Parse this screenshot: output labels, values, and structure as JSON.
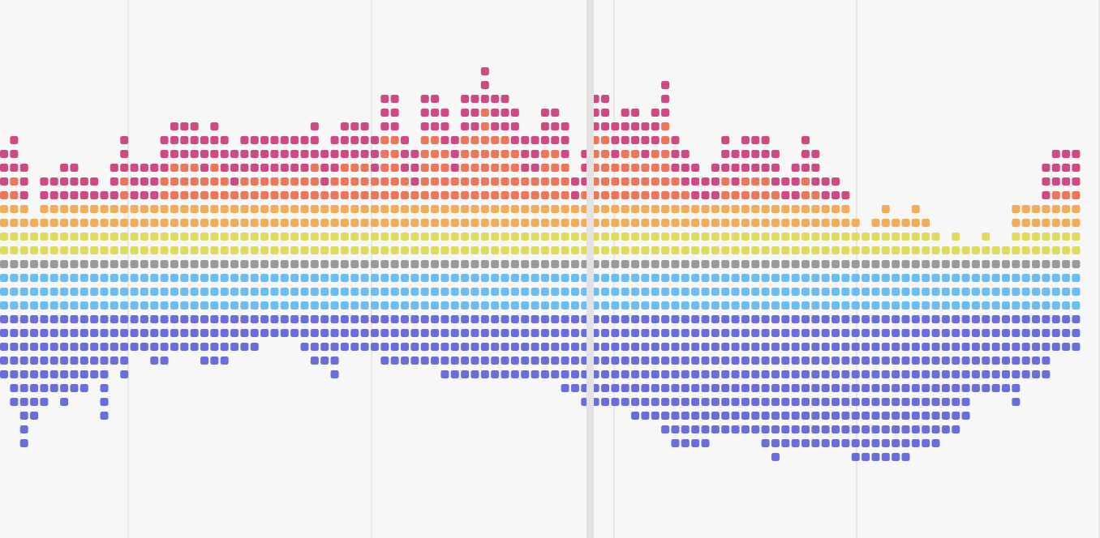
{
  "chart_data": {
    "type": "bar",
    "layout": "diverging-stacked-dot-columns",
    "title": "",
    "xlabel": "",
    "ylabel": "",
    "grid": true,
    "columns": 108,
    "series": [
      {
        "name": "",
        "key": "up1",
        "color": "#6bbdf3",
        "direction": "above-baseline"
      },
      {
        "name": "",
        "key": "up2",
        "color": "#9a9a9a",
        "direction": "above-baseline"
      },
      {
        "name": "",
        "key": "up3",
        "color": "#dedc5e",
        "direction": "above-baseline"
      },
      {
        "name": "",
        "key": "up4",
        "color": "#f2ad5b",
        "direction": "above-baseline"
      },
      {
        "name": "",
        "key": "up5",
        "color": "#ee775b",
        "direction": "above-baseline"
      },
      {
        "name": "",
        "key": "up6",
        "color": "#cf4a82",
        "direction": "above-baseline"
      },
      {
        "name": "",
        "key": "down1",
        "color": "#6bbdf3",
        "direction": "below-baseline"
      },
      {
        "name": "",
        "key": "down2",
        "color": "#6a6ddc",
        "direction": "below-baseline"
      }
    ],
    "above_counts": [
      10,
      11,
      9,
      5,
      8,
      8,
      9,
      9,
      8,
      8,
      7,
      9,
      11,
      9,
      9,
      9,
      11,
      12,
      12,
      12,
      11,
      12,
      11,
      10,
      11,
      11,
      11,
      11,
      11,
      11,
      11,
      12,
      10,
      11,
      12,
      12,
      12,
      11,
      14,
      14,
      11,
      10,
      14,
      14,
      13,
      11,
      14,
      14,
      16,
      14,
      14,
      13,
      11,
      11,
      13,
      13,
      12,
      8,
      10,
      14,
      14,
      12,
      13,
      13,
      12,
      13,
      15,
      11,
      10,
      9,
      8,
      9,
      11,
      10,
      11,
      11,
      11,
      10,
      8,
      9,
      11,
      10,
      8,
      8,
      7,
      5,
      4,
      5,
      6,
      5,
      5,
      6,
      5,
      4,
      3,
      4,
      3,
      3,
      4,
      3,
      3,
      6,
      6,
      6,
      9,
      10,
      10,
      10
    ],
    "below_counts": [
      7,
      9,
      12,
      10,
      9,
      8,
      9,
      8,
      8,
      7,
      10,
      6,
      7,
      5,
      5,
      6,
      6,
      5,
      5,
      5,
      6,
      6,
      6,
      5,
      5,
      5,
      4,
      4,
      4,
      4,
      5,
      6,
      6,
      7,
      5,
      5,
      5,
      5,
      6,
      6,
      6,
      6,
      6,
      6,
      7,
      7,
      7,
      7,
      7,
      7,
      7,
      7,
      7,
      7,
      7,
      7,
      8,
      8,
      9,
      9,
      9,
      9,
      9,
      10,
      10,
      10,
      11,
      12,
      12,
      12,
      12,
      11,
      11,
      11,
      11,
      11,
      12,
      13,
      12,
      12,
      12,
      12,
      12,
      12,
      12,
      13,
      13,
      13,
      13,
      13,
      13,
      12,
      12,
      12,
      11,
      11,
      10,
      8,
      8,
      8,
      8,
      9,
      7,
      7,
      7,
      5,
      5,
      5
    ],
    "color_key": {
      "L": "#6bbdf3",
      "G": "#9a9a9a",
      "Y": "#dedc5e",
      "O": "#f2ad5b",
      "R": "#ee775b",
      "M": "#cf4a82",
      "P": "#6a6ddc"
    }
  }
}
